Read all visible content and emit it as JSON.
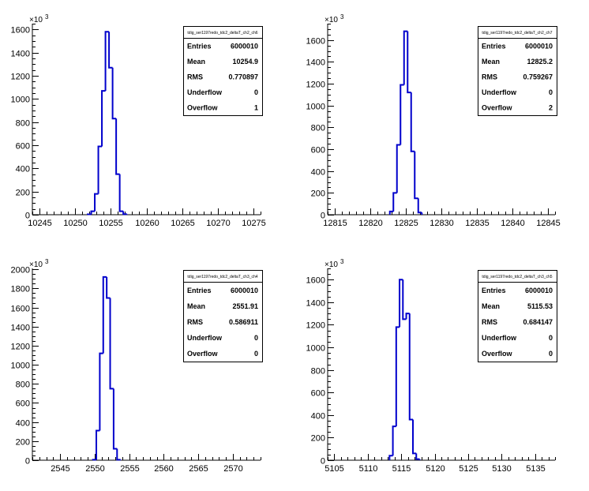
{
  "chart_data": [
    {
      "type": "histogram",
      "title": "tdig_ser1197redo_tdc2_deltaT_ch2_ch6",
      "y_exponent": "10",
      "y_exponent_power": "3",
      "xlim": [
        10244,
        10276
      ],
      "ylim": [
        0,
        1650
      ],
      "x_ticks": [
        10245,
        10250,
        10255,
        10260,
        10265,
        10270,
        10275
      ],
      "y_ticks": [
        0,
        200,
        400,
        600,
        800,
        1000,
        1200,
        1400,
        1600
      ],
      "y_tick_labels": [
        "0",
        "200",
        "400",
        "600",
        "800",
        "1000",
        "1200",
        "1400",
        "1600"
      ],
      "bins": [
        {
          "x": 10252,
          "y": 3
        },
        {
          "x": 10252.5,
          "y": 30
        },
        {
          "x": 10253,
          "y": 180
        },
        {
          "x": 10253.5,
          "y": 590
        },
        {
          "x": 10254,
          "y": 1070
        },
        {
          "x": 10254.5,
          "y": 1580
        },
        {
          "x": 10255,
          "y": 1270
        },
        {
          "x": 10255.5,
          "y": 830
        },
        {
          "x": 10256,
          "y": 350
        },
        {
          "x": 10256.5,
          "y": 30
        },
        {
          "x": 10257,
          "y": 5
        }
      ],
      "stats": [
        {
          "key": "Entries",
          "value": "6000010"
        },
        {
          "key": "Mean",
          "value": "10254.9"
        },
        {
          "key": "RMS",
          "value": "0.770897"
        },
        {
          "key": "Underflow",
          "value": "0"
        },
        {
          "key": "Overflow",
          "value": "1"
        }
      ]
    },
    {
      "type": "histogram",
      "title": "tdig_ser1197redo_tdc2_deltaT_ch2_ch7",
      "y_exponent": "10",
      "y_exponent_power": "3",
      "xlim": [
        12814,
        12846
      ],
      "ylim": [
        0,
        1750
      ],
      "x_ticks": [
        12815,
        12820,
        12825,
        12830,
        12835,
        12840,
        12845
      ],
      "y_ticks": [
        0,
        200,
        400,
        600,
        800,
        1000,
        1200,
        1400,
        1600
      ],
      "y_tick_labels": [
        "0",
        "200",
        "400",
        "600",
        "800",
        "1000",
        "1200",
        "1400",
        "1600"
      ],
      "bins": [
        {
          "x": 12823,
          "y": 30
        },
        {
          "x": 12823.5,
          "y": 200
        },
        {
          "x": 12824,
          "y": 640
        },
        {
          "x": 12824.5,
          "y": 1190
        },
        {
          "x": 12825,
          "y": 1680
        },
        {
          "x": 12825.5,
          "y": 1120
        },
        {
          "x": 12826,
          "y": 580
        },
        {
          "x": 12826.5,
          "y": 150
        },
        {
          "x": 12827,
          "y": 20
        }
      ],
      "stats": [
        {
          "key": "Entries",
          "value": "6000010"
        },
        {
          "key": "Mean",
          "value": "12825.2"
        },
        {
          "key": "RMS",
          "value": "0.759267"
        },
        {
          "key": "Underflow",
          "value": "0"
        },
        {
          "key": "Overflow",
          "value": "2"
        }
      ]
    },
    {
      "type": "histogram",
      "title": "tdig_ser1197redo_tdc2_deltaT_ch3_ch4",
      "y_exponent": "10",
      "y_exponent_power": "3",
      "xlim": [
        2541,
        2574
      ],
      "ylim": [
        0,
        2010
      ],
      "x_ticks": [
        2545,
        2550,
        2555,
        2560,
        2565,
        2570
      ],
      "y_ticks": [
        0,
        200,
        400,
        600,
        800,
        1000,
        1200,
        1400,
        1600,
        1800,
        2000
      ],
      "y_tick_labels": [
        "0",
        "200",
        "400",
        "600",
        "800",
        "1000",
        "1200",
        "1400",
        "1600",
        "1800",
        "2000"
      ],
      "bins": [
        {
          "x": 2550,
          "y": 5
        },
        {
          "x": 2550.5,
          "y": 310
        },
        {
          "x": 2551,
          "y": 1120
        },
        {
          "x": 2551.5,
          "y": 1920
        },
        {
          "x": 2552,
          "y": 1700
        },
        {
          "x": 2552.5,
          "y": 750
        },
        {
          "x": 2553,
          "y": 120
        },
        {
          "x": 2553.5,
          "y": 5
        }
      ],
      "stats": [
        {
          "key": "Entries",
          "value": "6000010"
        },
        {
          "key": "Mean",
          "value": "2551.91"
        },
        {
          "key": "RMS",
          "value": "0.586911"
        },
        {
          "key": "Underflow",
          "value": "0"
        },
        {
          "key": "Overflow",
          "value": "0"
        }
      ]
    },
    {
      "type": "histogram",
      "title": "tdig_ser1197redo_tdc2_deltaT_ch3_ch5",
      "y_exponent": "10",
      "y_exponent_power": "3",
      "xlim": [
        5104,
        5138
      ],
      "ylim": [
        0,
        1700
      ],
      "x_ticks": [
        5105,
        5110,
        5115,
        5120,
        5125,
        5130,
        5135
      ],
      "y_ticks": [
        0,
        200,
        400,
        600,
        800,
        1000,
        1200,
        1400,
        1600
      ],
      "y_tick_labels": [
        "0",
        "200",
        "400",
        "600",
        "800",
        "1000",
        "1200",
        "1400",
        "1600"
      ],
      "bins": [
        {
          "x": 5113.5,
          "y": 40
        },
        {
          "x": 5114,
          "y": 300
        },
        {
          "x": 5114.5,
          "y": 1180
        },
        {
          "x": 5115,
          "y": 1600
        },
        {
          "x": 5115.5,
          "y": 1250
        },
        {
          "x": 5116,
          "y": 1300
        },
        {
          "x": 5116.5,
          "y": 360
        },
        {
          "x": 5117,
          "y": 60
        },
        {
          "x": 5117.5,
          "y": 10
        }
      ],
      "stats": [
        {
          "key": "Entries",
          "value": "6000010"
        },
        {
          "key": "Mean",
          "value": "5115.53"
        },
        {
          "key": "RMS",
          "value": "0.684147"
        },
        {
          "key": "Underflow",
          "value": "0"
        },
        {
          "key": "Overflow",
          "value": "0"
        }
      ]
    }
  ]
}
